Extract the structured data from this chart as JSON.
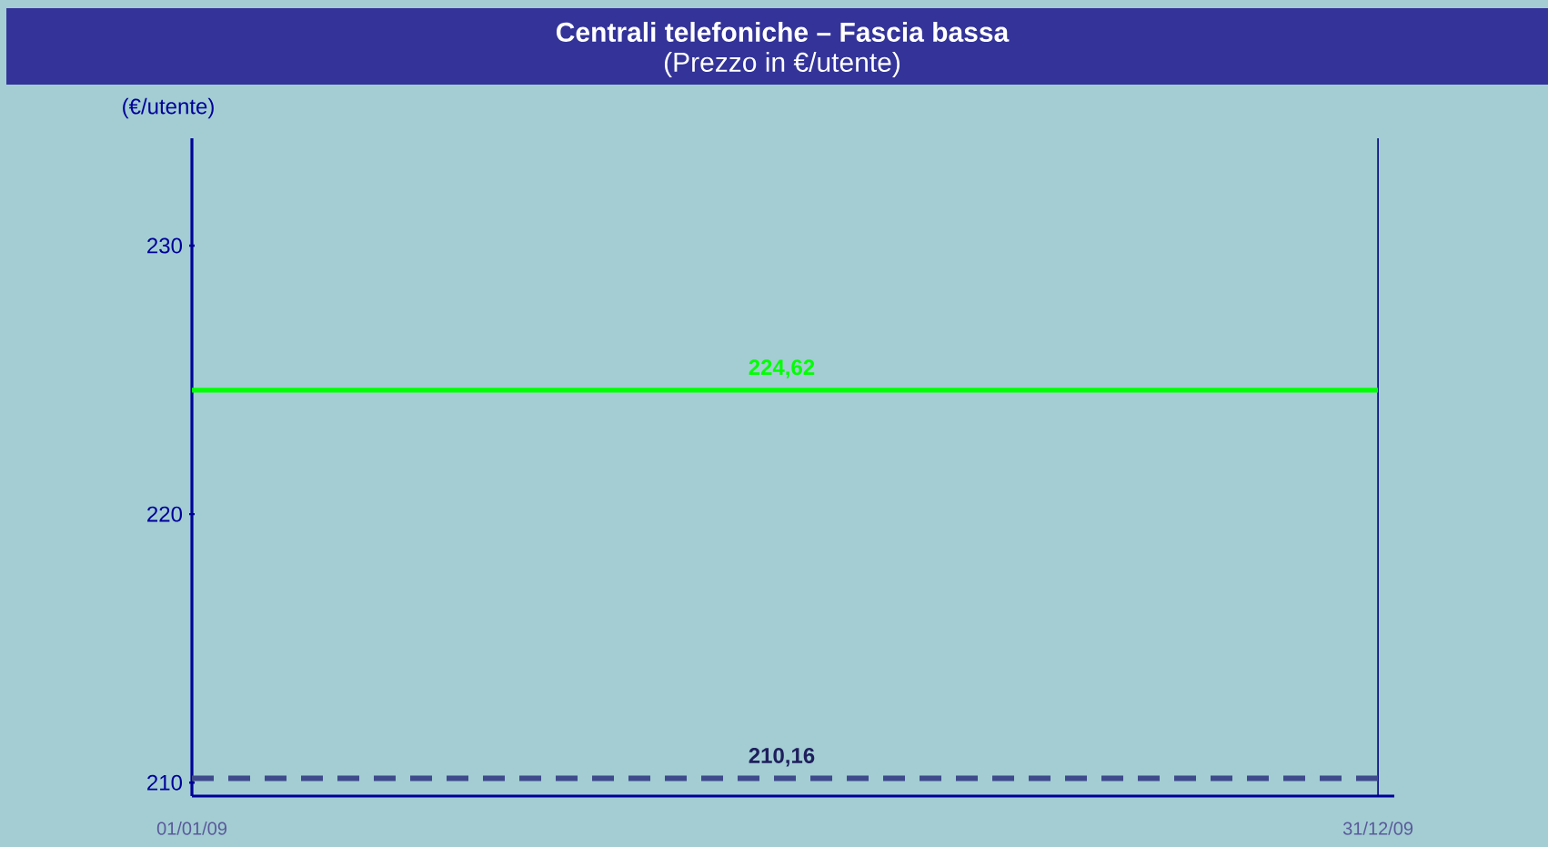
{
  "chart_data": {
    "type": "line",
    "title": "Centrali telefoniche – Fascia bassa",
    "subtitle": "(Prezzo in €/utente)",
    "ylabel": "(€/utente)",
    "x": [
      "2009-01-01",
      "2009-07-01",
      "2009-12-31"
    ],
    "series": [
      {
        "color": "#00ff00",
        "line_style": "solid",
        "values": [
          224.62,
          224.62,
          224.62
        ],
        "value_labels": [
          null,
          "224,62",
          null
        ]
      },
      {
        "color": "#3f4a8c",
        "line_style": "dashed",
        "values": [
          210.16,
          210.16,
          210.16
        ],
        "value_labels": [
          null,
          "210,16",
          null
        ]
      }
    ],
    "marker": "none",
    "xlim": [
      "2009-01-01",
      "2010-01-05"
    ],
    "xticks": [
      {
        "value": "2009-01-01",
        "label": "01/01/09"
      },
      {
        "value": "2009-12-31",
        "label": "31/12/09"
      }
    ],
    "ylim": [
      209.5,
      234
    ],
    "yticks": [
      210,
      220,
      230
    ],
    "ref_lines": [
      {
        "axis": "x",
        "value": "2009-12-31",
        "color": "#000080"
      }
    ]
  }
}
